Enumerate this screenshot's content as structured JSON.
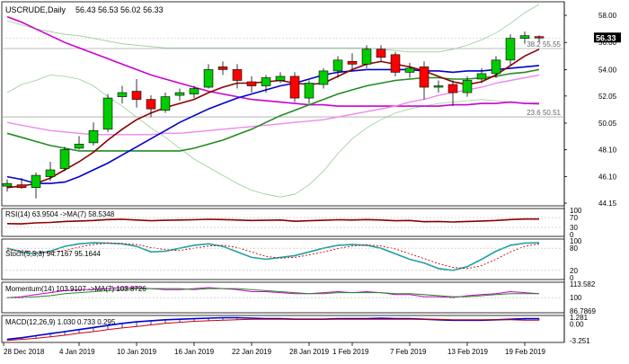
{
  "header": {
    "symbol": "USCRUDE,Daily",
    "ohlc": "56.43 56.53 56.02 56.33"
  },
  "colors": {
    "bull": "#00cc00",
    "bear": "#ff0000",
    "candle_edge": "#000000",
    "ma_fast": "#8b0000",
    "ma_mid": "#0000cd",
    "ma_slow": "#228b22",
    "ma_long": "#cc00cc",
    "band_outer": "#99cc99",
    "band_inner": "#ee88ee",
    "rsi": "#8b0000",
    "stoch_main": "#20a0a0",
    "stoch_signal": "#cc0000",
    "momentum": "#cc00cc",
    "momentum_ma": "#228b22",
    "macd_main": "#0000cc",
    "macd_signal": "#cc0000",
    "fib": "#aaaaaa",
    "price_tag": "#000000"
  },
  "fib": [
    {
      "label": "38.2 55.55",
      "value": 55.55
    },
    {
      "label": "23.6 50.51",
      "value": 50.51
    }
  ],
  "price_axis": {
    "ticks": [
      "58.00",
      "56.00",
      "54.00",
      "52.05",
      "50.05",
      "48.10",
      "46.10",
      "44.15"
    ],
    "current": "56.33"
  },
  "x_axis": {
    "labels": [
      "28 Dec 2018",
      "4 Jan 2019",
      "10 Jan 2019",
      "16 Jan 2019",
      "22 Jan 2019",
      "28 Jan 2019",
      "1 Feb 2019",
      "7 Feb 2019",
      "13 Feb 2019",
      "19 Feb 2019"
    ]
  },
  "indicators": {
    "rsi": {
      "label": "RSI(14) 63.9504 ->MA(7) 58.5348",
      "ticks": [
        "100",
        "70",
        "30",
        "0"
      ]
    },
    "stoch": {
      "label": "Stoch(5,3,3) 94.7167 95.1644",
      "ticks": [
        "100",
        "80",
        "20",
        "0"
      ]
    },
    "momentum": {
      "label": "Momentum(14) 103.9107 ->MA(7) 103.8726",
      "ticks": [
        "113.582",
        "100",
        "86.7869"
      ]
    },
    "macd": {
      "label": "MACD(12,26,9) 1.030 0.733 0.295",
      "ticks": [
        "1.281",
        "0.00",
        "-3.251"
      ]
    }
  },
  "chart_data": {
    "type": "candlestick",
    "title": "USCRUDE,Daily",
    "ylim": [
      44.15,
      58.8
    ],
    "candles": [
      {
        "o": 45.4,
        "h": 45.9,
        "l": 45.0,
        "c": 45.6
      },
      {
        "o": 45.5,
        "h": 46.0,
        "l": 45.2,
        "c": 45.3
      },
      {
        "o": 45.3,
        "h": 46.4,
        "l": 44.5,
        "c": 46.2
      },
      {
        "o": 46.1,
        "h": 47.2,
        "l": 45.8,
        "c": 46.6
      },
      {
        "o": 46.7,
        "h": 48.3,
        "l": 46.5,
        "c": 48.1
      },
      {
        "o": 48.2,
        "h": 49.1,
        "l": 48.1,
        "c": 48.5
      },
      {
        "o": 48.6,
        "h": 50.1,
        "l": 48.4,
        "c": 49.5
      },
      {
        "o": 49.6,
        "h": 52.2,
        "l": 49.4,
        "c": 51.9
      },
      {
        "o": 52.0,
        "h": 52.8,
        "l": 51.5,
        "c": 52.3
      },
      {
        "o": 52.4,
        "h": 53.3,
        "l": 51.2,
        "c": 51.8
      },
      {
        "o": 51.8,
        "h": 52.1,
        "l": 50.5,
        "c": 51.1
      },
      {
        "o": 51.0,
        "h": 52.3,
        "l": 50.8,
        "c": 52.0
      },
      {
        "o": 52.1,
        "h": 52.6,
        "l": 51.7,
        "c": 52.3
      },
      {
        "o": 52.2,
        "h": 52.8,
        "l": 51.9,
        "c": 52.6
      },
      {
        "o": 52.7,
        "h": 54.4,
        "l": 52.6,
        "c": 54.0
      },
      {
        "o": 54.2,
        "h": 54.6,
        "l": 53.6,
        "c": 54.0
      },
      {
        "o": 54.0,
        "h": 54.4,
        "l": 52.6,
        "c": 53.2
      },
      {
        "o": 53.1,
        "h": 53.5,
        "l": 52.3,
        "c": 52.8
      },
      {
        "o": 52.8,
        "h": 53.6,
        "l": 52.3,
        "c": 53.4
      },
      {
        "o": 53.2,
        "h": 53.8,
        "l": 53.0,
        "c": 53.5
      },
      {
        "o": 53.5,
        "h": 53.8,
        "l": 51.6,
        "c": 51.9
      },
      {
        "o": 51.9,
        "h": 53.2,
        "l": 51.5,
        "c": 53.0
      },
      {
        "o": 52.9,
        "h": 54.1,
        "l": 52.6,
        "c": 53.9
      },
      {
        "o": 53.9,
        "h": 55.0,
        "l": 53.4,
        "c": 54.7
      },
      {
        "o": 54.6,
        "h": 55.2,
        "l": 54.0,
        "c": 54.4
      },
      {
        "o": 54.4,
        "h": 55.8,
        "l": 54.1,
        "c": 55.5
      },
      {
        "o": 55.5,
        "h": 55.8,
        "l": 54.6,
        "c": 54.9
      },
      {
        "o": 55.1,
        "h": 55.3,
        "l": 53.5,
        "c": 53.8
      },
      {
        "o": 53.8,
        "h": 54.5,
        "l": 53.4,
        "c": 54.1
      },
      {
        "o": 54.2,
        "h": 54.6,
        "l": 51.8,
        "c": 52.7
      },
      {
        "o": 52.7,
        "h": 53.2,
        "l": 52.3,
        "c": 52.8
      },
      {
        "o": 52.9,
        "h": 53.2,
        "l": 51.3,
        "c": 52.3
      },
      {
        "o": 52.3,
        "h": 53.5,
        "l": 52.0,
        "c": 53.2
      },
      {
        "o": 53.3,
        "h": 54.1,
        "l": 53.0,
        "c": 53.7
      },
      {
        "o": 53.7,
        "h": 55.0,
        "l": 53.4,
        "c": 54.7
      },
      {
        "o": 54.7,
        "h": 56.6,
        "l": 54.3,
        "c": 56.3
      },
      {
        "o": 56.3,
        "h": 56.8,
        "l": 55.9,
        "c": 56.5
      },
      {
        "o": 56.43,
        "h": 56.53,
        "l": 56.02,
        "c": 56.33
      }
    ],
    "overlays": [
      {
        "color_key": "band_outer",
        "values": [
          52.3,
          52.9,
          53.2,
          53.6,
          53.5,
          53.3,
          52.8,
          52.0,
          51.3,
          50.5,
          49.7,
          49.0,
          48.2,
          47.4,
          46.8,
          46.2,
          45.6,
          45.1,
          44.8,
          44.6,
          44.8,
          45.5,
          46.5,
          47.8,
          48.9,
          49.7,
          50.3,
          50.8,
          51.1,
          51.3,
          51.5,
          51.6,
          51.7,
          51.8,
          51.7,
          51.6,
          51.5,
          51.4
        ]
      },
      {
        "color_key": "band_outer",
        "values": [
          57.6,
          57.3,
          57.0,
          56.8,
          56.6,
          56.5,
          56.3,
          56.1,
          55.9,
          55.8,
          55.7,
          55.6,
          55.6,
          55.6,
          55.6,
          55.6,
          55.6,
          55.6,
          55.6,
          55.6,
          55.6,
          55.6,
          55.6,
          55.6,
          55.6,
          55.6,
          55.5,
          55.4,
          55.3,
          55.3,
          55.3,
          55.5,
          55.8,
          56.2,
          56.7,
          57.4,
          58.2,
          58.8
        ]
      },
      {
        "color_key": "ma_long",
        "values": [
          57.9,
          57.5,
          57.0,
          56.5,
          56.0,
          55.6,
          55.2,
          54.8,
          54.4,
          54.0,
          53.6,
          53.3,
          53.0,
          52.7,
          52.4,
          52.2,
          52.0,
          51.8,
          51.7,
          51.6,
          51.5,
          51.4,
          51.4,
          51.3,
          51.3,
          51.3,
          51.3,
          51.3,
          51.3,
          51.3,
          51.3,
          51.4,
          51.4,
          51.5,
          51.5,
          51.6,
          51.5,
          51.5
        ]
      },
      {
        "color_key": "band_inner",
        "values": [
          50.1,
          49.9,
          49.7,
          49.5,
          49.4,
          49.3,
          49.2,
          49.2,
          49.2,
          49.2,
          49.2,
          49.3,
          49.3,
          49.4,
          49.5,
          49.6,
          49.7,
          49.8,
          49.9,
          50.0,
          50.1,
          50.2,
          50.3,
          50.5,
          50.7,
          50.9,
          51.1,
          51.3,
          51.6,
          51.8,
          52.1,
          52.3,
          52.5,
          52.7,
          53.0,
          53.2,
          53.4,
          53.6
        ]
      },
      {
        "color_key": "ma_slow",
        "values": [
          49.3,
          49.0,
          48.7,
          48.4,
          48.2,
          48.0,
          48.0,
          48.0,
          48.0,
          48.0,
          48.0,
          48.0,
          48.0,
          48.2,
          48.5,
          48.8,
          49.2,
          49.6,
          50.1,
          50.6,
          51.0,
          51.4,
          51.8,
          52.2,
          52.5,
          52.8,
          53.0,
          53.2,
          53.3,
          53.4,
          53.4,
          53.3,
          53.3,
          53.4,
          53.5,
          53.7,
          53.8,
          54.0
        ]
      },
      {
        "color_key": "ma_mid",
        "values": [
          46.1,
          45.9,
          45.6,
          45.6,
          45.7,
          46.1,
          46.6,
          47.1,
          47.7,
          48.3,
          48.9,
          49.5,
          50.1,
          50.6,
          51.1,
          51.5,
          51.9,
          52.2,
          52.5,
          52.8,
          53.0,
          53.3,
          53.6,
          53.8,
          53.9,
          54.0,
          54.0,
          54.0,
          54.0,
          53.9,
          53.9,
          53.8,
          53.9,
          53.9,
          54.0,
          54.1,
          54.2,
          54.3
        ]
      },
      {
        "color_key": "ma_fast",
        "values": [
          45.3,
          45.4,
          45.6,
          46.0,
          46.6,
          47.2,
          47.9,
          48.8,
          49.6,
          50.3,
          50.8,
          51.2,
          51.5,
          51.8,
          52.3,
          52.7,
          53.0,
          53.0,
          53.1,
          53.2,
          53.0,
          52.9,
          53.0,
          53.5,
          54.0,
          54.4,
          54.6,
          54.4,
          54.2,
          53.9,
          53.5,
          53.1,
          52.9,
          53.1,
          53.6,
          54.3,
          55.0,
          55.5
        ]
      }
    ],
    "rsi": [
      45,
      44,
      48,
      50,
      54,
      56,
      58,
      62,
      63,
      60,
      57,
      59,
      60,
      61,
      63,
      62,
      60,
      58,
      59,
      60,
      55,
      57,
      59,
      61,
      60,
      62,
      60,
      57,
      58,
      53,
      54,
      52,
      54,
      56,
      58,
      62,
      64,
      64
    ],
    "stoch": [
      [
        80,
        70,
        65,
        72,
        85,
        92,
        95,
        94,
        92,
        85,
        70,
        72,
        80,
        88,
        92,
        85,
        70,
        55,
        50,
        55,
        60,
        70,
        80,
        88,
        90,
        88,
        80,
        65,
        50,
        40,
        25,
        20,
        30,
        50,
        72,
        88,
        94,
        95
      ],
      [
        75,
        74,
        70,
        68,
        74,
        83,
        90,
        94,
        93,
        90,
        82,
        76,
        74,
        80,
        86,
        88,
        82,
        70,
        58,
        53,
        55,
        62,
        70,
        79,
        86,
        89,
        86,
        78,
        65,
        52,
        38,
        28,
        25,
        33,
        50,
        70,
        85,
        92
      ]
    ],
    "momentum": [
      [
        100,
        101,
        103,
        105,
        107,
        108,
        108,
        109,
        110,
        110,
        109,
        108,
        108,
        109,
        110,
        109,
        108,
        106,
        106,
        105,
        104,
        104,
        105,
        106,
        105,
        106,
        105,
        103,
        103,
        101,
        101,
        100,
        102,
        103,
        104,
        106,
        105,
        104
      ],
      [
        100,
        100,
        101,
        102,
        104,
        105,
        106,
        107,
        108,
        109,
        109,
        109,
        109,
        108,
        109,
        109,
        109,
        108,
        107,
        106,
        105,
        104,
        104,
        105,
        105,
        105,
        105,
        104,
        104,
        103,
        102,
        101,
        101,
        102,
        103,
        104,
        104,
        104
      ]
    ],
    "macd": [
      [
        -3.0,
        -2.7,
        -2.3,
        -1.9,
        -1.5,
        -1.1,
        -0.7,
        -0.3,
        0.1,
        0.4,
        0.6,
        0.8,
        0.9,
        1.0,
        1.1,
        1.2,
        1.2,
        1.1,
        1.0,
        1.0,
        0.9,
        0.9,
        0.9,
        1.0,
        1.0,
        1.0,
        1.1,
        1.0,
        1.0,
        0.9,
        0.8,
        0.7,
        0.7,
        0.7,
        0.8,
        0.9,
        1.0,
        1.0
      ],
      [
        -3.2,
        -3.0,
        -2.8,
        -2.5,
        -2.2,
        -1.8,
        -1.5,
        -1.1,
        -0.8,
        -0.5,
        -0.2,
        0.1,
        0.3,
        0.5,
        0.6,
        0.7,
        0.8,
        0.9,
        0.9,
        0.9,
        0.9,
        0.9,
        0.9,
        0.9,
        0.9,
        0.9,
        0.9,
        0.9,
        0.9,
        0.9,
        0.9,
        0.8,
        0.8,
        0.8,
        0.8,
        0.8,
        0.7,
        0.7
      ]
    ]
  }
}
